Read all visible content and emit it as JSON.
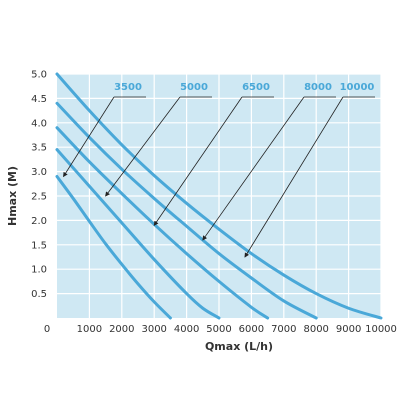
{
  "chart_data": {
    "type": "line",
    "title": "",
    "xlabel": "Qmax (L/h)",
    "ylabel": "Hmax (M)",
    "xlim": [
      0,
      10000
    ],
    "ylim": [
      0,
      5.0
    ],
    "xticks": [
      "0",
      "1000",
      "2000",
      "3000",
      "4000",
      "5000",
      "6000",
      "7000",
      "8000",
      "9000",
      "10000"
    ],
    "yticks": [
      "0.5",
      "1.0",
      "1.5",
      "2.0",
      "2.5",
      "3.0",
      "3.5",
      "4.0",
      "4.5",
      "5.0"
    ],
    "grid": true,
    "series": [
      {
        "name": "3500",
        "x": [
          0,
          500,
          1000,
          1500,
          2000,
          2500,
          3000,
          3500
        ],
        "y": [
          2.9,
          2.45,
          1.98,
          1.52,
          1.1,
          0.7,
          0.33,
          0
        ]
      },
      {
        "name": "5000",
        "x": [
          0,
          1000,
          2000,
          3000,
          4000,
          4500,
          5000
        ],
        "y": [
          3.45,
          2.7,
          1.95,
          1.2,
          0.5,
          0.2,
          0
        ]
      },
      {
        "name": "6500",
        "x": [
          0,
          1000,
          2000,
          3000,
          4000,
          5000,
          6000,
          6500
        ],
        "y": [
          3.9,
          3.2,
          2.55,
          1.92,
          1.32,
          0.75,
          0.22,
          0
        ]
      },
      {
        "name": "8000",
        "x": [
          0,
          1000,
          2000,
          3000,
          4000,
          5000,
          6000,
          7000,
          8000
        ],
        "y": [
          4.4,
          3.7,
          3.05,
          2.45,
          1.88,
          1.32,
          0.82,
          0.35,
          0
        ]
      },
      {
        "name": "10000",
        "x": [
          0,
          1000,
          2000,
          3000,
          4000,
          5000,
          6000,
          7000,
          8000,
          9000,
          10000
        ],
        "y": [
          5.0,
          4.25,
          3.55,
          2.92,
          2.35,
          1.82,
          1.32,
          0.88,
          0.5,
          0.2,
          0
        ]
      }
    ],
    "labels": [
      {
        "text": "3500",
        "target": [
          200,
          2.9
        ]
      },
      {
        "text": "5000",
        "target": [
          1500,
          2.5
        ]
      },
      {
        "text": "6500",
        "target": [
          3000,
          1.9
        ]
      },
      {
        "text": "8000",
        "target": [
          4500,
          1.6
        ]
      },
      {
        "text": "10000",
        "target": [
          5800,
          1.25
        ]
      }
    ],
    "colors": {
      "plot_background": "#cfe8f3",
      "grid": "#ffffff",
      "curve": "#4aa8d8",
      "label_text": "#4aa8d8",
      "arrow": "#222222"
    }
  }
}
